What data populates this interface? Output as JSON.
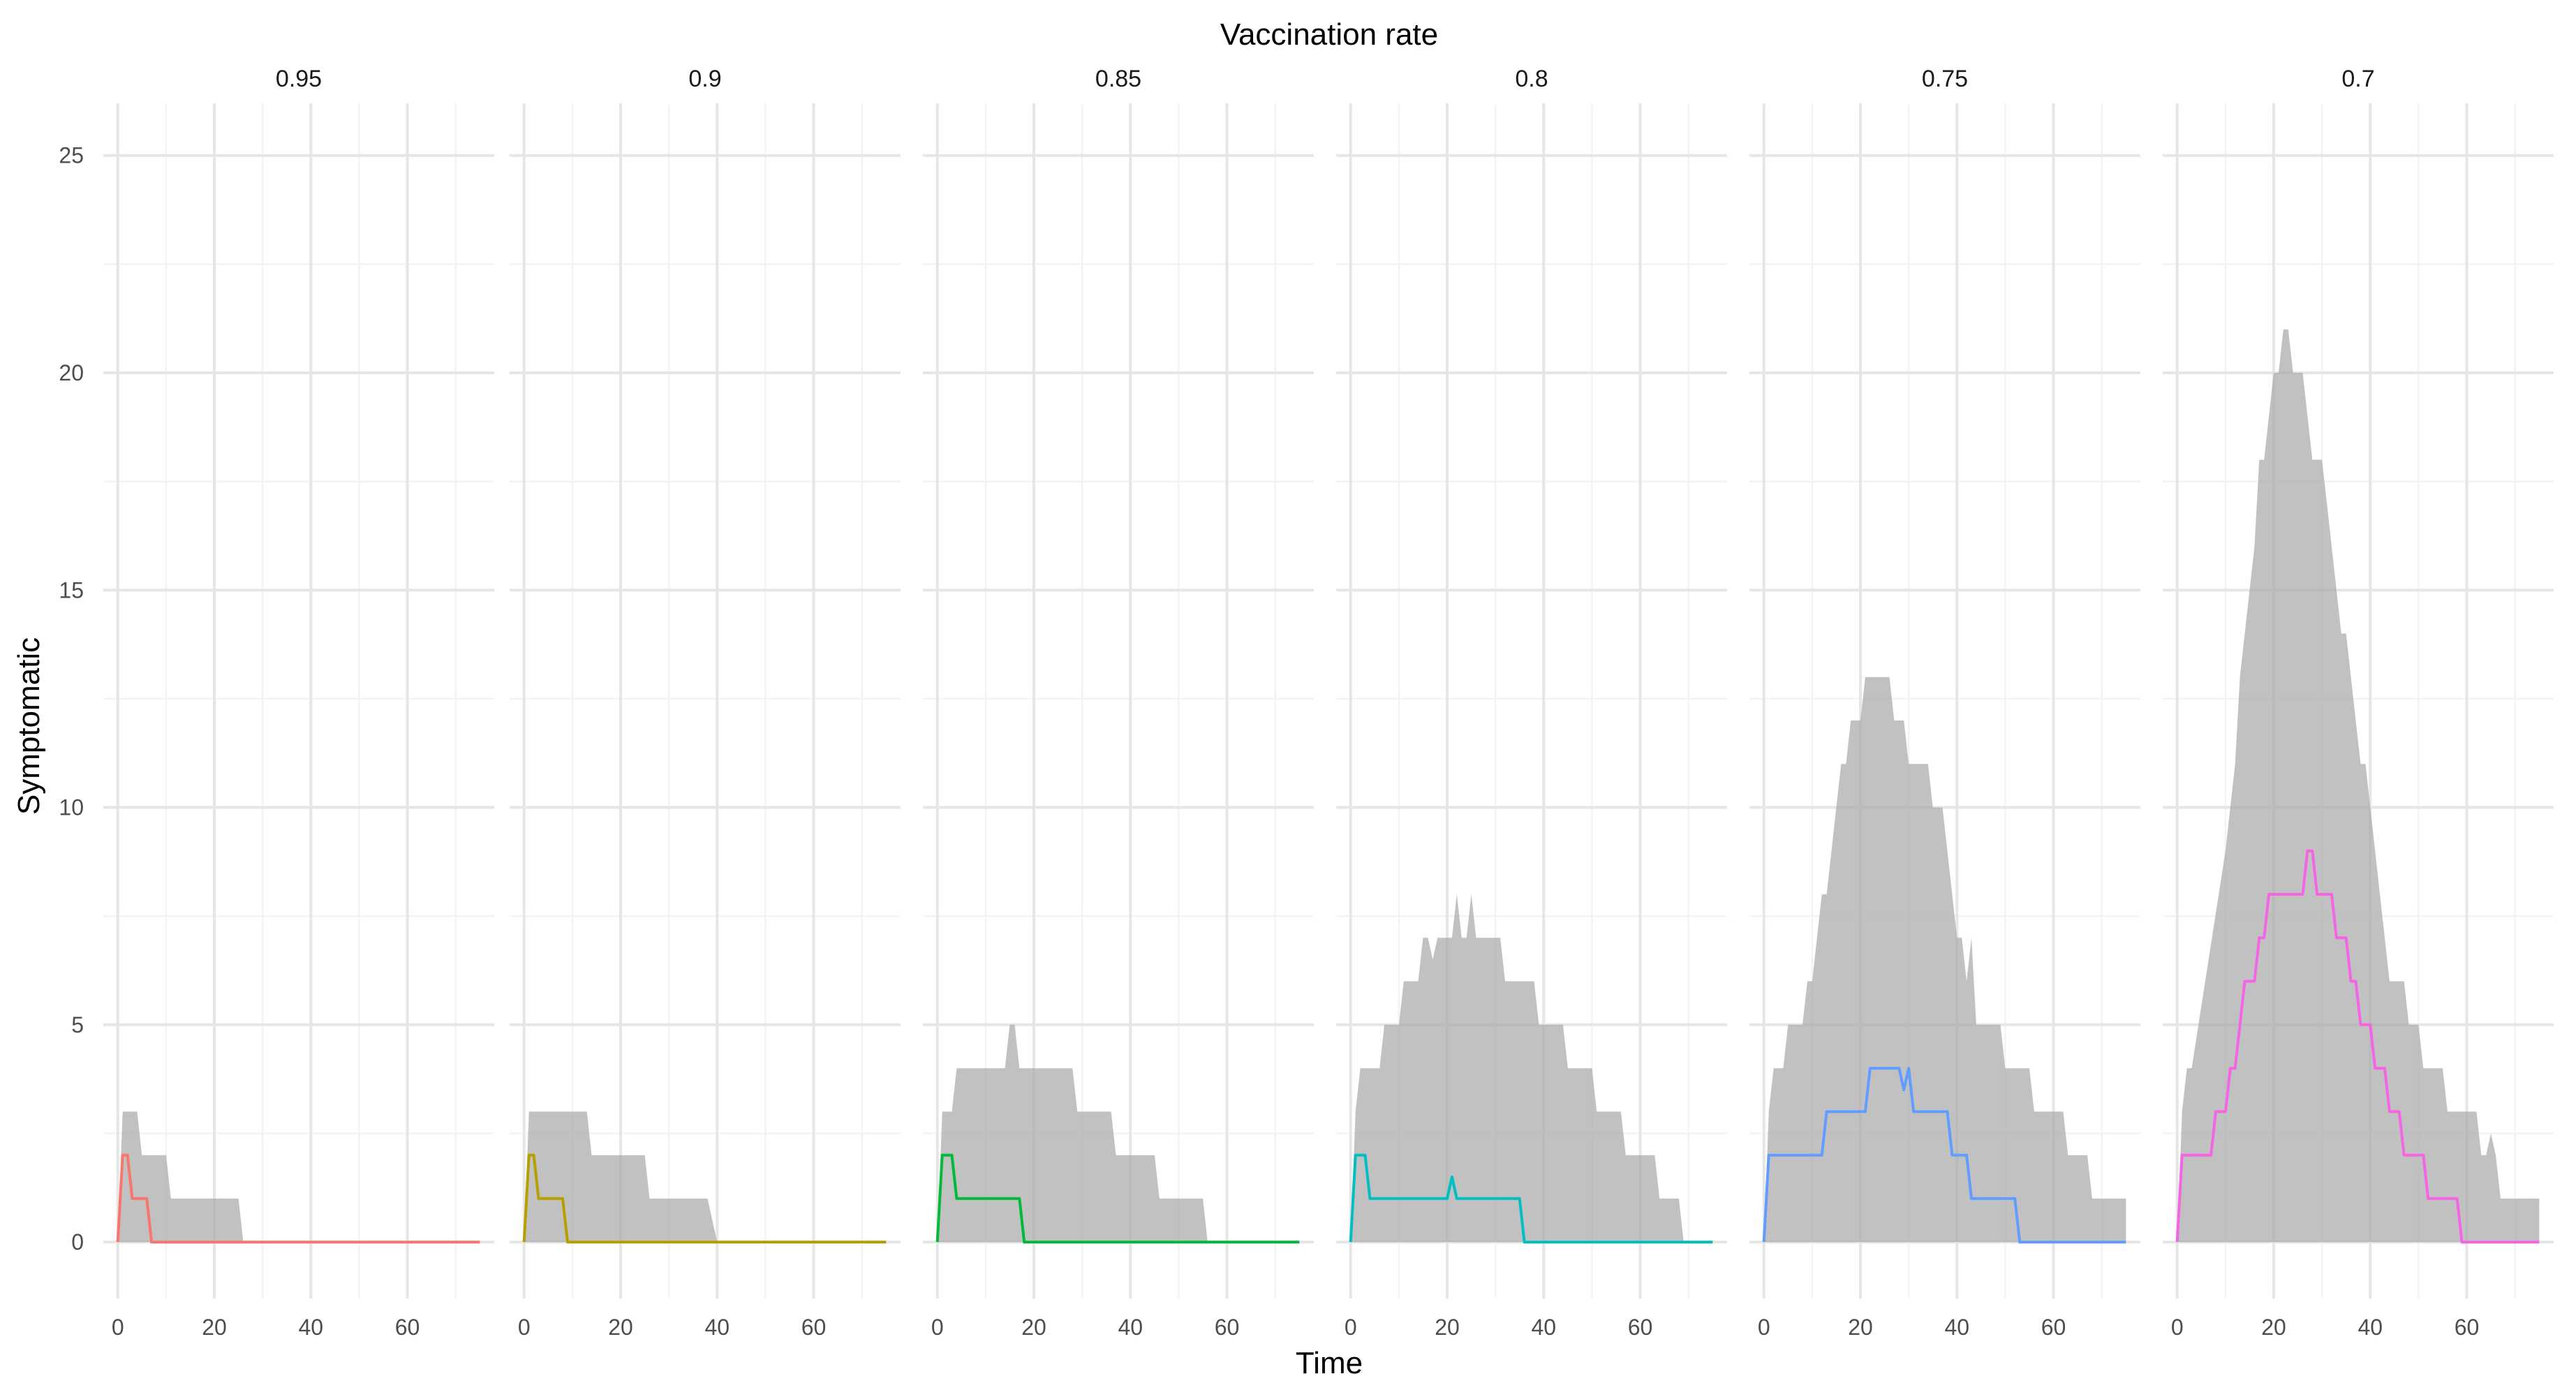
{
  "chart_data": {
    "type": "line",
    "title": "Vaccination rate",
    "xlabel": "Time",
    "ylabel": "Symptomatic",
    "xlim": [
      -3,
      78
    ],
    "ylim": [
      -1.3,
      26.2
    ],
    "xticks": [
      0,
      20,
      40,
      60
    ],
    "yticks": [
      0,
      5,
      10,
      15,
      20,
      25
    ],
    "grid": true,
    "legend": "none",
    "facets": [
      {
        "label": "0.95",
        "color": "#F8766D",
        "line": [
          [
            0,
            0
          ],
          [
            1,
            2
          ],
          [
            2,
            2
          ],
          [
            3,
            1
          ],
          [
            6,
            1
          ],
          [
            7,
            0
          ],
          [
            75,
            0
          ]
        ],
        "band_upper": [
          [
            0,
            0
          ],
          [
            1,
            3
          ],
          [
            4,
            3
          ],
          [
            5,
            2
          ],
          [
            10,
            2
          ],
          [
            11,
            1
          ],
          [
            25,
            1
          ],
          [
            26,
            0
          ]
        ],
        "band_lower": [
          [
            0,
            0
          ],
          [
            26,
            0
          ]
        ]
      },
      {
        "label": "0.9",
        "color": "#B79F00",
        "line": [
          [
            0,
            0
          ],
          [
            1,
            2
          ],
          [
            2,
            2
          ],
          [
            3,
            1
          ],
          [
            8,
            1
          ],
          [
            9,
            0
          ],
          [
            75,
            0
          ]
        ],
        "band_upper": [
          [
            0,
            0
          ],
          [
            1,
            3
          ],
          [
            13,
            3
          ],
          [
            14,
            2
          ],
          [
            25,
            2
          ],
          [
            26,
            1
          ],
          [
            38,
            1
          ],
          [
            40,
            0
          ]
        ],
        "band_lower": [
          [
            0,
            0
          ],
          [
            40,
            0
          ]
        ]
      },
      {
        "label": "0.85",
        "color": "#00BA38",
        "line": [
          [
            0,
            0
          ],
          [
            1,
            2
          ],
          [
            3,
            2
          ],
          [
            4,
            1
          ],
          [
            17,
            1
          ],
          [
            18,
            0
          ],
          [
            75,
            0
          ]
        ],
        "band_upper": [
          [
            0,
            0
          ],
          [
            1,
            3
          ],
          [
            3,
            3
          ],
          [
            4,
            4
          ],
          [
            14,
            4
          ],
          [
            15,
            5
          ],
          [
            16,
            5
          ],
          [
            17,
            4
          ],
          [
            28,
            4
          ],
          [
            29,
            3
          ],
          [
            36,
            3
          ],
          [
            37,
            2
          ],
          [
            45,
            2
          ],
          [
            46,
            1
          ],
          [
            55,
            1
          ],
          [
            56,
            0
          ]
        ],
        "band_lower": [
          [
            0,
            0
          ],
          [
            1,
            0
          ],
          [
            3,
            0
          ],
          [
            56,
            0
          ]
        ]
      },
      {
        "label": "0.8",
        "color": "#00BFC4",
        "line": [
          [
            0,
            0
          ],
          [
            1,
            2
          ],
          [
            3,
            2
          ],
          [
            4,
            1
          ],
          [
            20,
            1
          ],
          [
            21,
            1.5
          ],
          [
            22,
            1
          ],
          [
            35,
            1
          ],
          [
            36,
            0
          ],
          [
            75,
            0
          ]
        ],
        "band_upper": [
          [
            0,
            0
          ],
          [
            1,
            3
          ],
          [
            2,
            4
          ],
          [
            6,
            4
          ],
          [
            7,
            5
          ],
          [
            10,
            5
          ],
          [
            11,
            6
          ],
          [
            14,
            6
          ],
          [
            15,
            7
          ],
          [
            16,
            7
          ],
          [
            17,
            6.5
          ],
          [
            18,
            7
          ],
          [
            21,
            7
          ],
          [
            22,
            8
          ],
          [
            23,
            7
          ],
          [
            24,
            7
          ],
          [
            25,
            8
          ],
          [
            26,
            7
          ],
          [
            31,
            7
          ],
          [
            32,
            6
          ],
          [
            38,
            6
          ],
          [
            39,
            5
          ],
          [
            44,
            5
          ],
          [
            45,
            4
          ],
          [
            50,
            4
          ],
          [
            51,
            3
          ],
          [
            56,
            3
          ],
          [
            57,
            2
          ],
          [
            63,
            2
          ],
          [
            64,
            1
          ],
          [
            68,
            1
          ],
          [
            69,
            0
          ]
        ],
        "band_lower": [
          [
            0,
            0
          ],
          [
            69,
            0
          ]
        ]
      },
      {
        "label": "0.75",
        "color": "#619CFF",
        "line": [
          [
            0,
            0
          ],
          [
            1,
            2
          ],
          [
            12,
            2
          ],
          [
            13,
            3
          ],
          [
            21,
            3
          ],
          [
            22,
            4
          ],
          [
            28,
            4
          ],
          [
            29,
            3.5
          ],
          [
            30,
            4
          ],
          [
            31,
            3
          ],
          [
            38,
            3
          ],
          [
            39,
            2
          ],
          [
            42,
            2
          ],
          [
            43,
            1
          ],
          [
            52,
            1
          ],
          [
            53,
            0
          ],
          [
            75,
            0
          ]
        ],
        "band_upper": [
          [
            0,
            0
          ],
          [
            1,
            3
          ],
          [
            2,
            4
          ],
          [
            4,
            4
          ],
          [
            5,
            5
          ],
          [
            8,
            5
          ],
          [
            9,
            6
          ],
          [
            10,
            6
          ],
          [
            11,
            7
          ],
          [
            12,
            8
          ],
          [
            13,
            8
          ],
          [
            14,
            9
          ],
          [
            15,
            10
          ],
          [
            16,
            11
          ],
          [
            17,
            11
          ],
          [
            18,
            12
          ],
          [
            20,
            12
          ],
          [
            21,
            13
          ],
          [
            26,
            13
          ],
          [
            27,
            12
          ],
          [
            29,
            12
          ],
          [
            30,
            11
          ],
          [
            34,
            11
          ],
          [
            35,
            10
          ],
          [
            37,
            10
          ],
          [
            38,
            9
          ],
          [
            39,
            8
          ],
          [
            40,
            7
          ],
          [
            41,
            7
          ],
          [
            42,
            6
          ],
          [
            43,
            7
          ],
          [
            44,
            5
          ],
          [
            49,
            5
          ],
          [
            50,
            4
          ],
          [
            55,
            4
          ],
          [
            56,
            3
          ],
          [
            62,
            3
          ],
          [
            63,
            2
          ],
          [
            67,
            2
          ],
          [
            68,
            1
          ],
          [
            75,
            1
          ]
        ],
        "band_lower": [
          [
            0,
            0
          ],
          [
            75,
            0
          ]
        ]
      },
      {
        "label": "0.7",
        "color": "#F564E3",
        "line": [
          [
            0,
            0
          ],
          [
            1,
            2
          ],
          [
            7,
            2
          ],
          [
            8,
            3
          ],
          [
            10,
            3
          ],
          [
            11,
            4
          ],
          [
            12,
            4
          ],
          [
            13,
            5
          ],
          [
            14,
            6
          ],
          [
            16,
            6
          ],
          [
            17,
            7
          ],
          [
            18,
            7
          ],
          [
            19,
            8
          ],
          [
            26,
            8
          ],
          [
            27,
            9
          ],
          [
            28,
            9
          ],
          [
            29,
            8
          ],
          [
            32,
            8
          ],
          [
            33,
            7
          ],
          [
            35,
            7
          ],
          [
            36,
            6
          ],
          [
            37,
            6
          ],
          [
            38,
            5
          ],
          [
            40,
            5
          ],
          [
            41,
            4
          ],
          [
            43,
            4
          ],
          [
            44,
            3
          ],
          [
            46,
            3
          ],
          [
            47,
            2
          ],
          [
            51,
            2
          ],
          [
            52,
            1
          ],
          [
            58,
            1
          ],
          [
            59,
            0
          ],
          [
            75,
            0
          ]
        ],
        "band_upper": [
          [
            0,
            0
          ],
          [
            1,
            3
          ],
          [
            2,
            4
          ],
          [
            3,
            4
          ],
          [
            10,
            9
          ],
          [
            12,
            11
          ],
          [
            13,
            13
          ],
          [
            14,
            14
          ],
          [
            16,
            16
          ],
          [
            17,
            18
          ],
          [
            18,
            18
          ],
          [
            19,
            19
          ],
          [
            20,
            20
          ],
          [
            21,
            20
          ],
          [
            22,
            21
          ],
          [
            23,
            21
          ],
          [
            24,
            20
          ],
          [
            26,
            20
          ],
          [
            27,
            19
          ],
          [
            28,
            18
          ],
          [
            30,
            18
          ],
          [
            31,
            17
          ],
          [
            32,
            16
          ],
          [
            33,
            15
          ],
          [
            34,
            14
          ],
          [
            35,
            14
          ],
          [
            36,
            13
          ],
          [
            37,
            12
          ],
          [
            38,
            11
          ],
          [
            39,
            11
          ],
          [
            40,
            10
          ],
          [
            41,
            9
          ],
          [
            42,
            8
          ],
          [
            43,
            7
          ],
          [
            44,
            6
          ],
          [
            47,
            6
          ],
          [
            48,
            5
          ],
          [
            50,
            5
          ],
          [
            51,
            4
          ],
          [
            55,
            4
          ],
          [
            56,
            3
          ],
          [
            62,
            3
          ],
          [
            63,
            2
          ],
          [
            64,
            2
          ],
          [
            65,
            2.5
          ],
          [
            66,
            2
          ],
          [
            67,
            1
          ],
          [
            75,
            1
          ]
        ],
        "band_lower": [
          [
            0,
            0
          ],
          [
            75,
            0
          ]
        ]
      }
    ]
  }
}
